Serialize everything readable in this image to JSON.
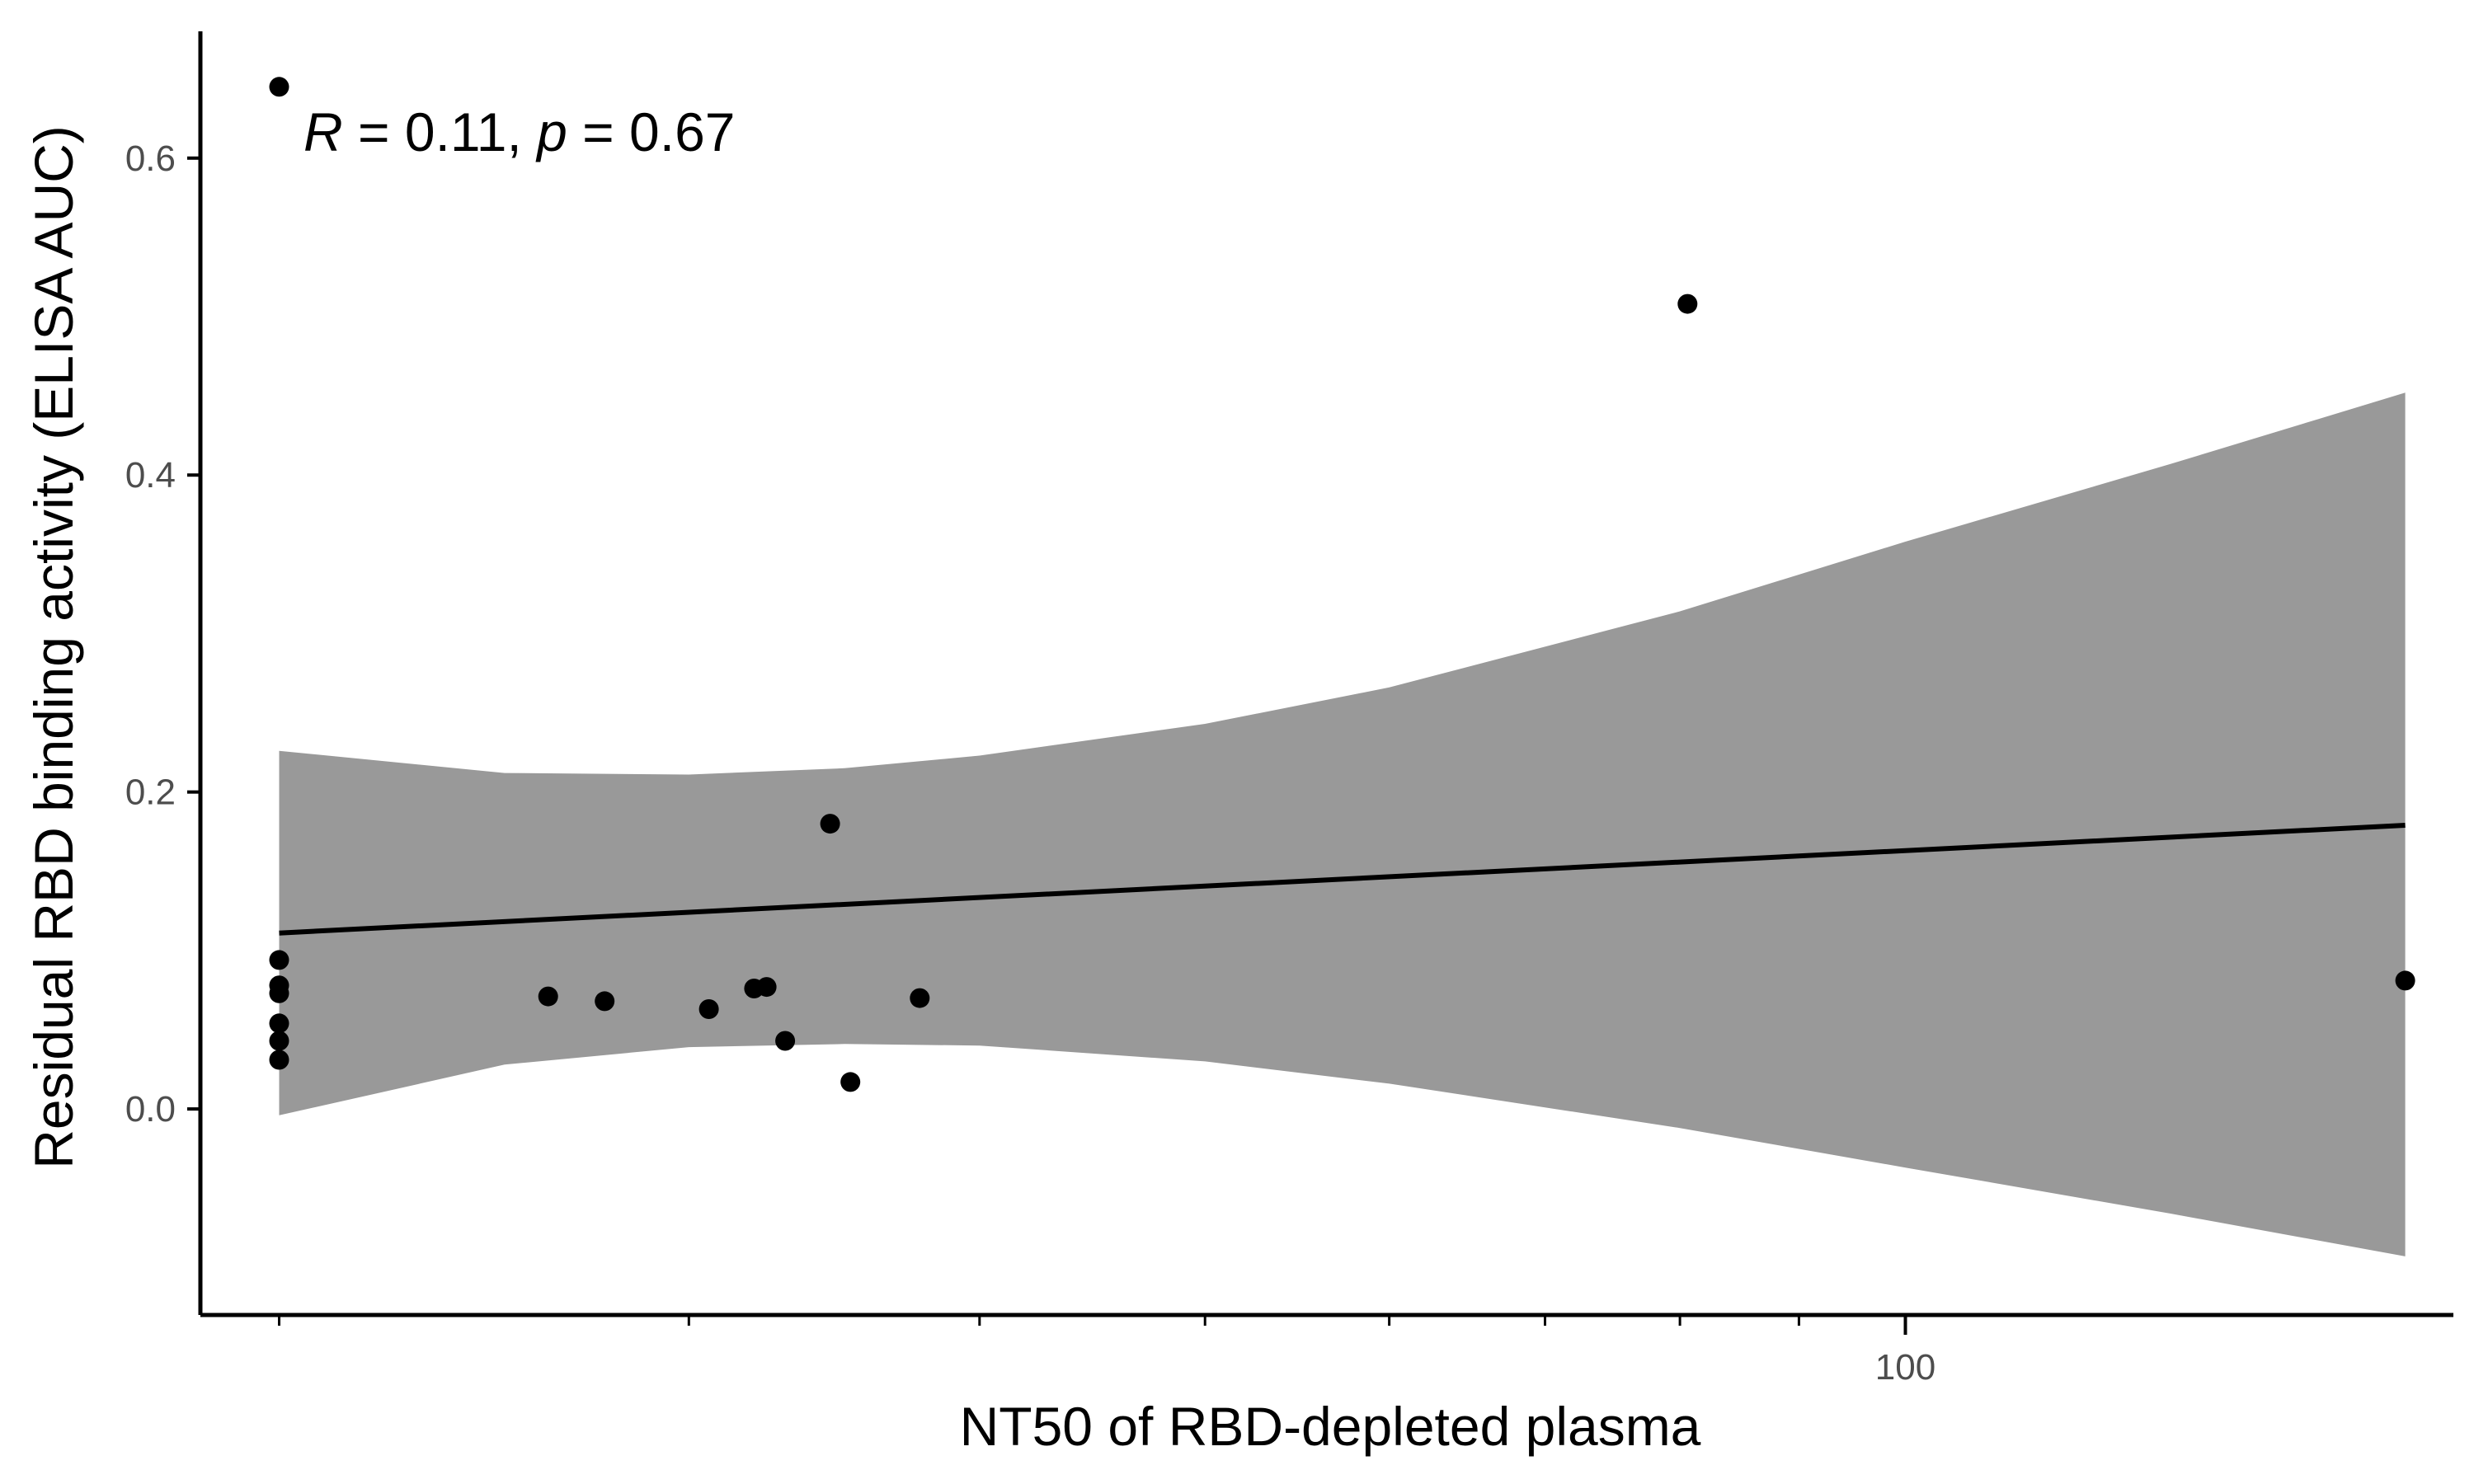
{
  "chart_data": {
    "type": "scatter",
    "title": "",
    "xlabel": "NT50 of RBD-depleted plasma",
    "ylabel": "Residual RBD binding activity (ELISA AUC)",
    "x_scale": "log10",
    "xlim": [
      18.5,
      172
    ],
    "ylim": [
      -0.13,
      0.68
    ],
    "x_ticks": [
      {
        "value": 100,
        "label": "100"
      }
    ],
    "x_minor_ticks": [
      20,
      30,
      40,
      50,
      60,
      70,
      80,
      90
    ],
    "y_ticks": [
      {
        "value": 0.0,
        "label": "0.0"
      },
      {
        "value": 0.2,
        "label": "0.2"
      },
      {
        "value": 0.4,
        "label": "0.4"
      },
      {
        "value": 0.6,
        "label": "0.6"
      }
    ],
    "grid": false,
    "annotation": {
      "r_symbol": "R",
      "r_text": " = 0.11, ",
      "p_symbol": "p",
      "p_text": " = 0.67"
    },
    "points": [
      {
        "x": 20,
        "y": 0.645
      },
      {
        "x": 20,
        "y": 0.094
      },
      {
        "x": 20,
        "y": 0.078
      },
      {
        "x": 20,
        "y": 0.073
      },
      {
        "x": 20,
        "y": 0.054
      },
      {
        "x": 20,
        "y": 0.043
      },
      {
        "x": 20,
        "y": 0.031
      },
      {
        "x": 26.1,
        "y": 0.071
      },
      {
        "x": 27.6,
        "y": 0.068
      },
      {
        "x": 30.6,
        "y": 0.063
      },
      {
        "x": 32.0,
        "y": 0.076
      },
      {
        "x": 32.4,
        "y": 0.077
      },
      {
        "x": 33.0,
        "y": 0.043
      },
      {
        "x": 34.5,
        "y": 0.18
      },
      {
        "x": 35.2,
        "y": 0.017
      },
      {
        "x": 37.7,
        "y": 0.07
      },
      {
        "x": 80.6,
        "y": 0.508
      },
      {
        "x": 164,
        "y": 0.081
      }
    ],
    "fit_line": {
      "x": [
        20,
        164
      ],
      "y": [
        0.111,
        0.179
      ]
    },
    "confidence_band": {
      "x": [
        20,
        25,
        30,
        35,
        40,
        50,
        60,
        80,
        100,
        130,
        164
      ],
      "lower": [
        -0.004,
        0.028,
        0.039,
        0.041,
        0.04,
        0.03,
        0.016,
        -0.012,
        -0.037,
        -0.066,
        -0.093
      ],
      "upper": [
        0.226,
        0.212,
        0.211,
        0.215,
        0.223,
        0.243,
        0.266,
        0.314,
        0.358,
        0.407,
        0.452
      ]
    },
    "colors": {
      "points": "#000000",
      "line": "#000000",
      "band": "#999999",
      "axis": "#000000",
      "tick_label": "#4d4d4d"
    }
  }
}
